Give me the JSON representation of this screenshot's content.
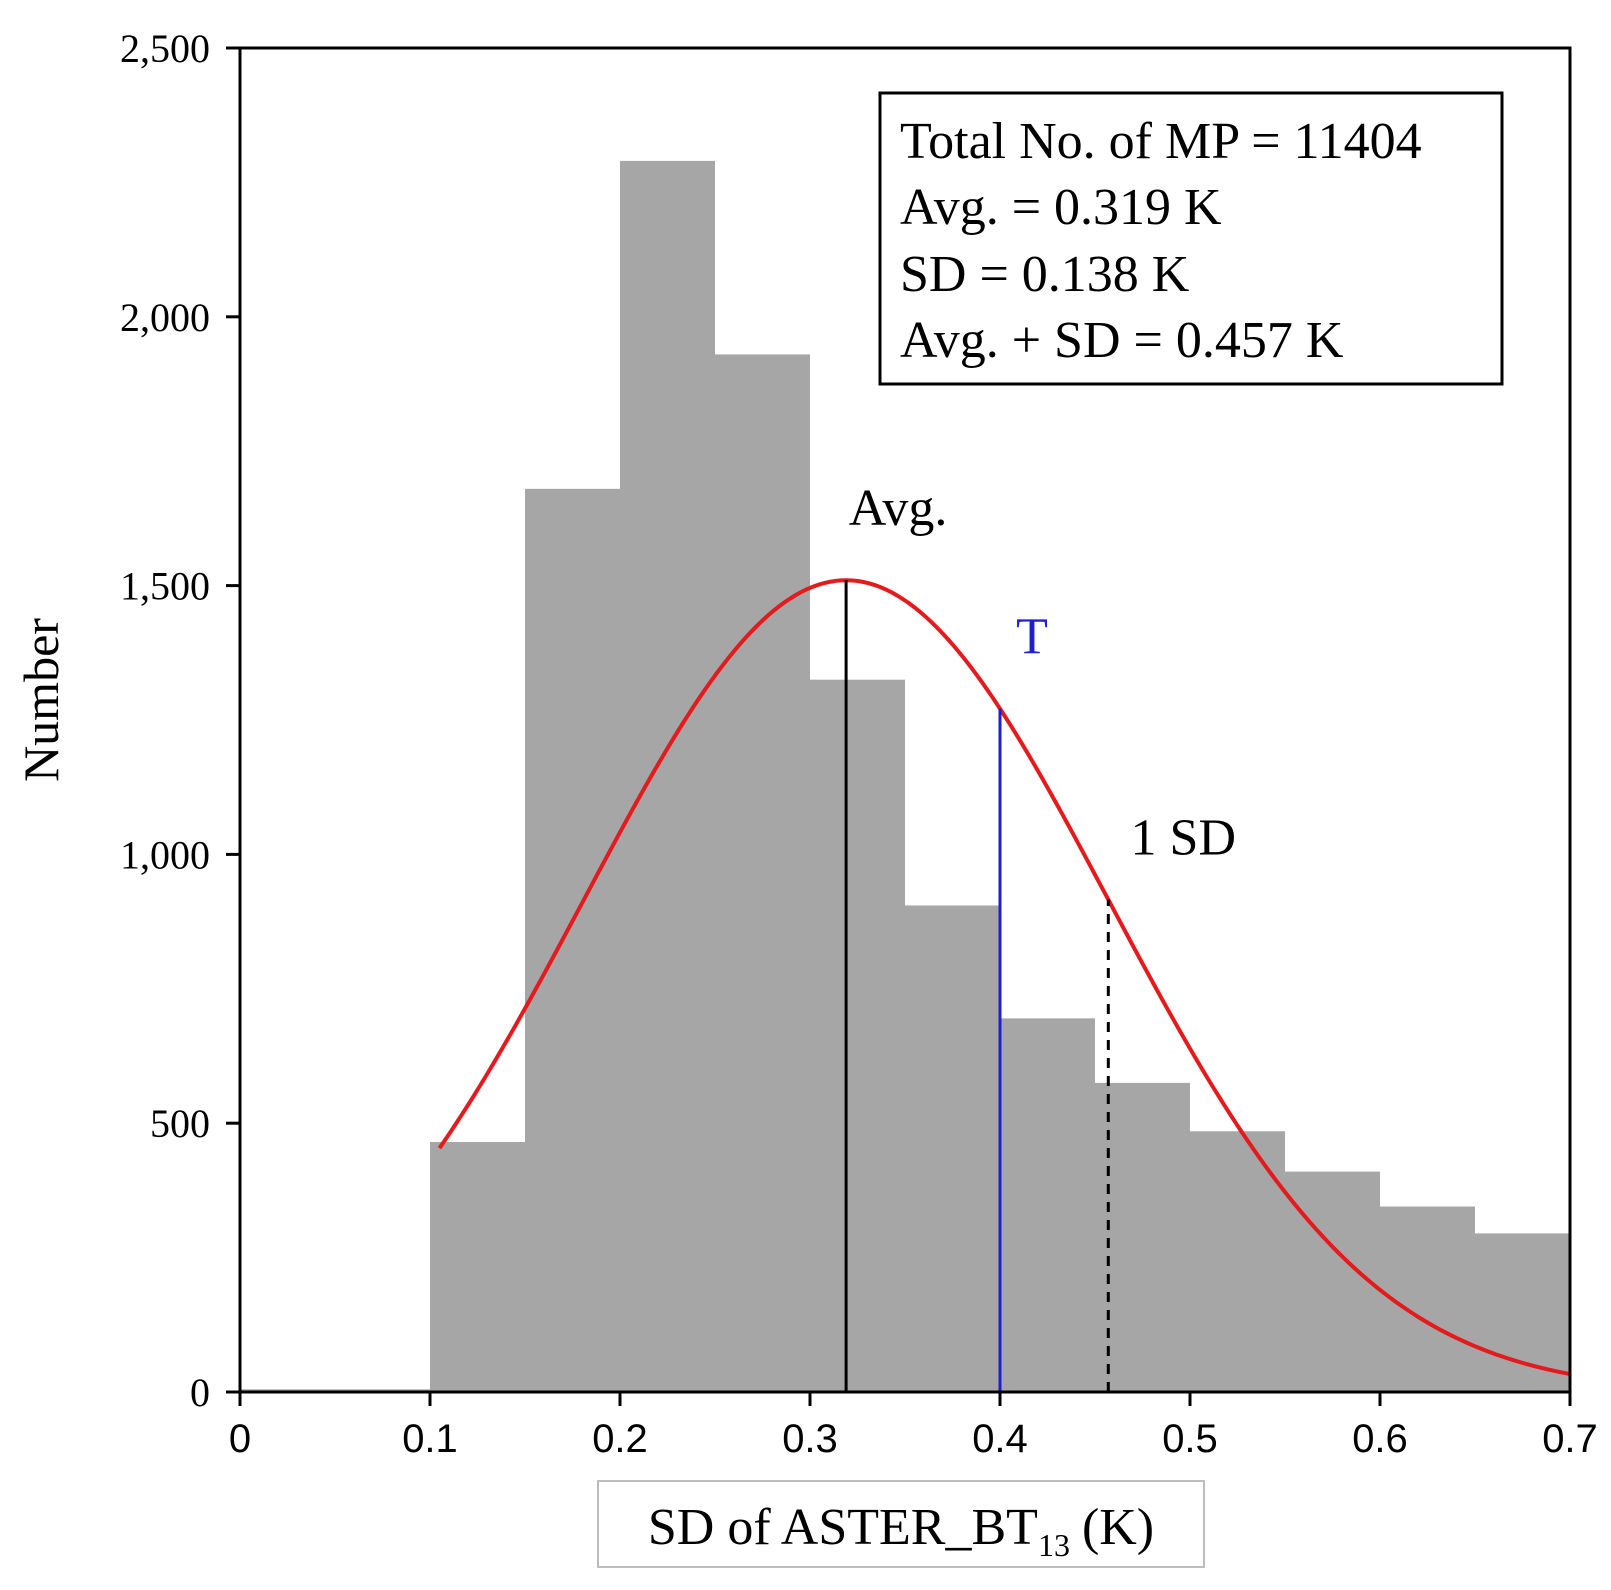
{
  "chart_data": {
    "type": "bar",
    "subtype": "histogram",
    "xlabel": "SD of ASTER_BT",
    "xlabel_subscript": "13",
    "xlabel_unit": "(K)",
    "ylabel": "Number",
    "xlim": [
      0,
      0.7
    ],
    "ylim": [
      0,
      2500
    ],
    "x_ticks": [
      0,
      0.1,
      0.2,
      0.3,
      0.4,
      0.5,
      0.6,
      0.7
    ],
    "x_tick_labels": [
      "0",
      "0.1",
      "0.2",
      "0.3",
      "0.4",
      "0.5",
      "0.6",
      "0.7"
    ],
    "y_ticks": [
      0,
      500,
      1000,
      1500,
      2000,
      2500
    ],
    "y_tick_labels": [
      "0",
      "500",
      "1,000",
      "1,500",
      "2,000",
      "2,500"
    ],
    "bins": [
      {
        "x0": 0.0,
        "x1": 0.1,
        "value": 5
      },
      {
        "x0": 0.1,
        "x1": 0.15,
        "value": 465
      },
      {
        "x0": 0.15,
        "x1": 0.2,
        "value": 1680
      },
      {
        "x0": 0.2,
        "x1": 0.25,
        "value": 2290
      },
      {
        "x0": 0.25,
        "x1": 0.3,
        "value": 1930
      },
      {
        "x0": 0.3,
        "x1": 0.35,
        "value": 1325
      },
      {
        "x0": 0.35,
        "x1": 0.4,
        "value": 905
      },
      {
        "x0": 0.4,
        "x1": 0.45,
        "value": 695
      },
      {
        "x0": 0.45,
        "x1": 0.5,
        "value": 575
      },
      {
        "x0": 0.5,
        "x1": 0.55,
        "value": 485
      },
      {
        "x0": 0.55,
        "x1": 0.6,
        "value": 410
      },
      {
        "x0": 0.6,
        "x1": 0.65,
        "value": 345
      },
      {
        "x0": 0.65,
        "x1": 0.7,
        "value": 295
      }
    ],
    "bar_color": "#a6a6a6",
    "normal_curve": {
      "mean": 0.319,
      "sd": 0.138,
      "peak": 1510,
      "x_start": 0.105,
      "x_end": 0.7,
      "color": "#e41a1c"
    },
    "vertical_lines": [
      {
        "name": "avg",
        "x": 0.319,
        "label": "Avg.",
        "color": "#000000",
        "style": "solid"
      },
      {
        "name": "threshold",
        "x": 0.4,
        "label": "T",
        "color": "#1f1fd0",
        "style": "solid"
      },
      {
        "name": "one-sd",
        "x": 0.457,
        "label": "1 SD",
        "color": "#000000",
        "style": "dashed"
      }
    ],
    "stats_box": {
      "lines": [
        "Total No. of MP = 11404",
        "Avg. = 0.319 K",
        "SD = 0.138 K",
        "Avg. + SD = 0.457 K"
      ],
      "position": "top-right"
    }
  }
}
